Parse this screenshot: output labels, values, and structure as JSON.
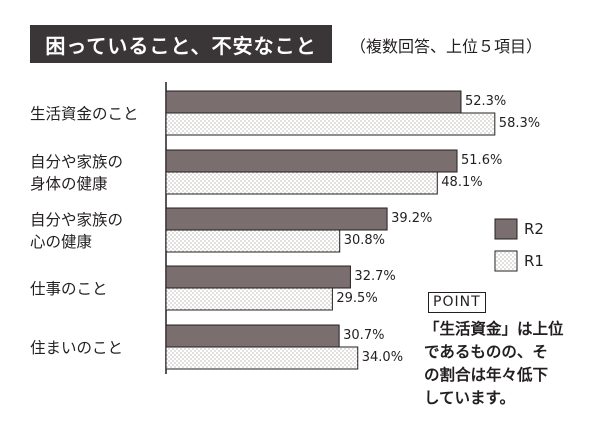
{
  "title": "困っていること、不安なこと",
  "subtitle": "（複数回答、上位５項目）",
  "colors": {
    "r2_fill": "#7a6e6f",
    "r1_fill": "#ffffff",
    "r1_dot": "#b9b2b3",
    "axis": "#231f20",
    "title_bg": "#3a3637"
  },
  "chart_data": {
    "type": "bar",
    "orientation": "horizontal",
    "categories": [
      [
        "生活資金のこと"
      ],
      [
        "自分や家族の",
        "身体の健康"
      ],
      [
        "自分や家族の",
        "心の健康"
      ],
      [
        "仕事のこと"
      ],
      [
        "住まいのこと"
      ]
    ],
    "series": [
      {
        "name": "R2",
        "values": [
          52.3,
          51.6,
          39.2,
          32.7,
          30.7
        ],
        "labels": [
          "52.3%",
          "51.6%",
          "39.2%",
          "32.7%",
          "30.7%"
        ]
      },
      {
        "name": "R1",
        "values": [
          58.3,
          48.1,
          30.8,
          29.5,
          34.0
        ],
        "labels": [
          "58.3%",
          "48.1%",
          "30.8%",
          "29.5%",
          "34.0%"
        ]
      }
    ],
    "xlim": [
      0,
      60
    ],
    "grid": false,
    "legend_position": "right"
  },
  "point": {
    "label": "POINT",
    "lines": [
      "「生活資金」は上位",
      "であるものの、そ",
      "の割合は年々低下",
      "しています。"
    ]
  }
}
